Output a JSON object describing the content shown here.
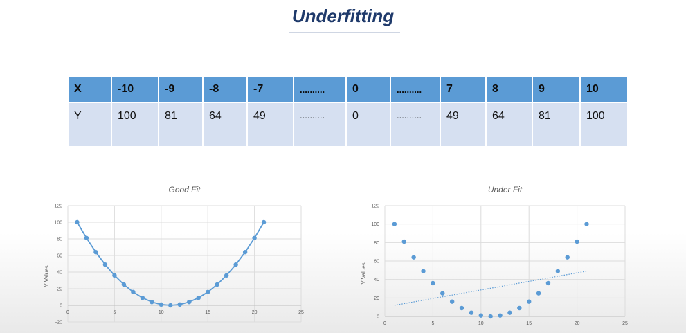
{
  "slide": {
    "title": "Underfitting"
  },
  "table": {
    "header": [
      "X",
      "-10",
      "-9",
      "-8",
      "-7",
      "..........",
      "0",
      "..........",
      "7",
      "8",
      "9",
      "10"
    ],
    "row": [
      "Y",
      "100",
      "81",
      "64",
      "49",
      "..........",
      "0",
      "..........",
      "49",
      "64",
      "81",
      "100"
    ]
  },
  "chart_data": [
    {
      "type": "line",
      "title": "Good Fit",
      "ylabel": "Y Values",
      "xlim": [
        0,
        25
      ],
      "ylim": [
        -20,
        120
      ],
      "xticks": [
        0,
        5,
        10,
        15,
        20,
        25
      ],
      "yticks": [
        -20,
        0,
        20,
        40,
        60,
        80,
        100,
        120
      ],
      "grid": true,
      "series": [
        {
          "x": [
            1,
            2,
            3,
            4,
            5,
            6,
            7,
            8,
            9,
            10,
            11,
            12,
            13,
            14,
            15,
            16,
            17,
            18,
            19,
            20,
            21
          ],
          "values": [
            100,
            81,
            64,
            49,
            36,
            25,
            16,
            9,
            4,
            1,
            0,
            1,
            4,
            9,
            16,
            25,
            36,
            49,
            64,
            81,
            100
          ],
          "style": "line-markers",
          "color": "#5b9bd5"
        }
      ]
    },
    {
      "type": "scatter",
      "title": "Under Fit",
      "ylabel": "Y Values",
      "xlim": [
        0,
        25
      ],
      "ylim": [
        0,
        120
      ],
      "xticks": [
        0,
        5,
        10,
        15,
        20,
        25
      ],
      "yticks": [
        0,
        20,
        40,
        60,
        80,
        100,
        120
      ],
      "grid": true,
      "series": [
        {
          "x": [
            1,
            2,
            3,
            4,
            5,
            6,
            7,
            8,
            9,
            10,
            11,
            12,
            13,
            14,
            15,
            16,
            17,
            18,
            19,
            20,
            21
          ],
          "values": [
            100,
            81,
            64,
            49,
            36,
            25,
            16,
            9,
            4,
            1,
            0,
            1,
            4,
            9,
            16,
            25,
            36,
            49,
            64,
            81,
            100
          ],
          "style": "markers",
          "color": "#5b9bd5"
        }
      ],
      "trendline": {
        "x": [
          1,
          21
        ],
        "values": [
          12,
          49
        ],
        "style": "dotted",
        "color": "#5b9bd5"
      }
    }
  ]
}
